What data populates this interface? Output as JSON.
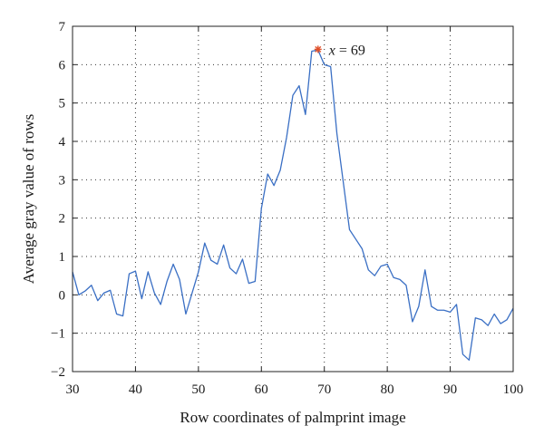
{
  "chart_data": {
    "type": "line",
    "xlabel": "Row coordinates of palmprint image",
    "ylabel": "Average gray value of rows",
    "xlim": [
      30,
      100
    ],
    "ylim": [
      -2,
      7
    ],
    "xticks": [
      30,
      40,
      50,
      60,
      70,
      80,
      90,
      100
    ],
    "yticks": [
      -2,
      -1,
      0,
      1,
      2,
      3,
      4,
      5,
      6,
      7
    ],
    "xtick_labels": [
      "30",
      "40",
      "50",
      "60",
      "70",
      "80",
      "90",
      "100"
    ],
    "ytick_labels": [
      "−2",
      "−1",
      "0",
      "1",
      "2",
      "3",
      "4",
      "5",
      "6",
      "7"
    ],
    "grid": true,
    "series": [
      {
        "color": "#3a6fc4",
        "x": [
          30,
          31,
          32,
          33,
          34,
          35,
          36,
          37,
          38,
          39,
          40,
          41,
          42,
          43,
          44,
          45,
          46,
          47,
          48,
          49,
          50,
          51,
          52,
          53,
          54,
          55,
          56,
          57,
          58,
          59,
          60,
          61,
          62,
          63,
          64,
          65,
          66,
          67,
          68,
          69,
          70,
          71,
          72,
          73,
          74,
          75,
          76,
          77,
          78,
          79,
          80,
          81,
          82,
          83,
          84,
          85,
          86,
          87,
          88,
          89,
          90,
          91,
          92,
          93,
          94,
          95,
          96,
          97,
          98,
          99,
          100
        ],
        "y": [
          0.6,
          0.0,
          0.1,
          0.25,
          -0.15,
          0.05,
          0.12,
          -0.5,
          -0.55,
          0.55,
          0.62,
          -0.1,
          0.6,
          0.05,
          -0.25,
          0.35,
          0.8,
          0.4,
          -0.5,
          0.05,
          0.6,
          1.35,
          0.9,
          0.8,
          1.3,
          0.7,
          0.55,
          0.93,
          0.3,
          0.35,
          2.25,
          3.15,
          2.85,
          3.25,
          4.1,
          5.2,
          5.45,
          4.7,
          6.35,
          6.38,
          6.0,
          5.95,
          4.2,
          2.95,
          1.7,
          1.45,
          1.2,
          0.65,
          0.5,
          0.75,
          0.8,
          0.45,
          0.4,
          0.25,
          -0.7,
          -0.3,
          0.65,
          -0.3,
          -0.4,
          -0.4,
          -0.45,
          -0.25,
          -1.55,
          -1.7,
          -0.6,
          -0.65,
          -0.8,
          -0.5,
          -0.75,
          -0.65,
          -0.35
        ]
      }
    ],
    "annotation": {
      "marker_x": 69,
      "marker_y": 6.4,
      "marker_color": "#e0502a",
      "label_var": "x",
      "label_rest": " = 69"
    }
  }
}
